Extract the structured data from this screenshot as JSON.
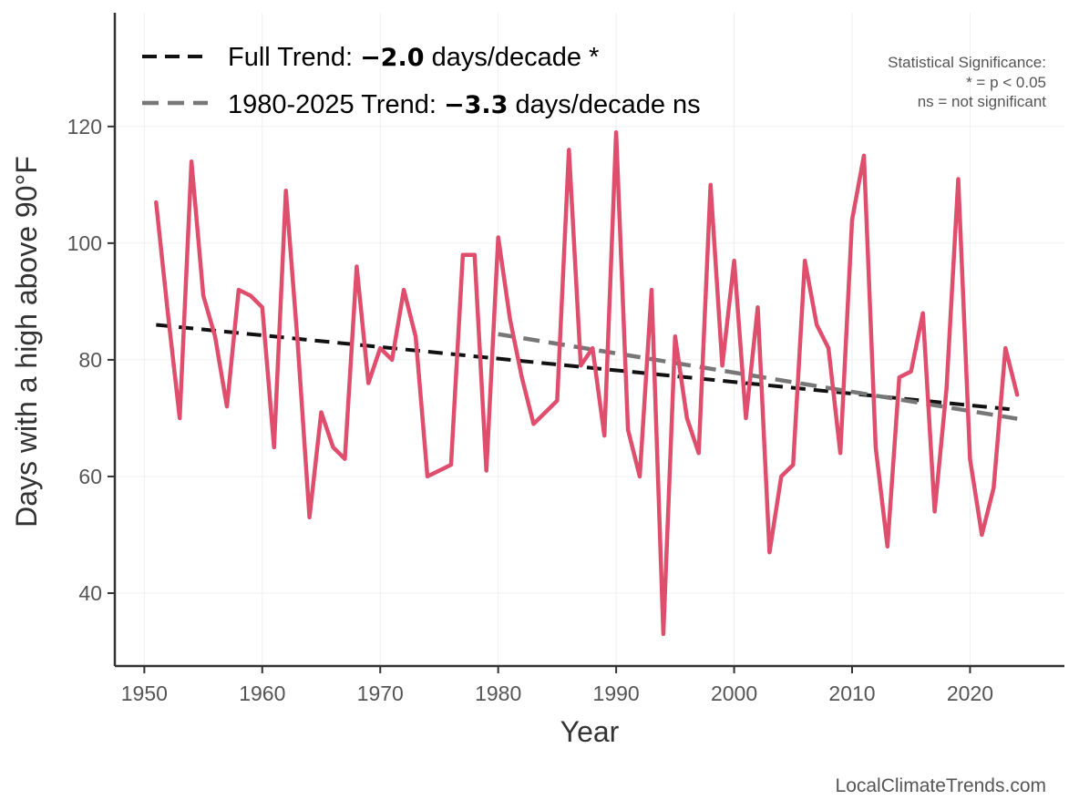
{
  "chart_data": {
    "type": "line",
    "xlabel": "Year",
    "ylabel": "Days with a high above 90°F",
    "xlim": [
      1947.5,
      2028
    ],
    "ylim": [
      27.5,
      139.5
    ],
    "xticks": [
      1950,
      1960,
      1970,
      1980,
      1990,
      2000,
      2010,
      2020
    ],
    "yticks": [
      40,
      60,
      80,
      100,
      120
    ],
    "grid": true,
    "series": [
      {
        "name": "Days above 90°F",
        "color": "#e04e6e",
        "x": [
          1951,
          1952,
          1953,
          1954,
          1955,
          1956,
          1957,
          1958,
          1959,
          1960,
          1961,
          1962,
          1963,
          1964,
          1965,
          1966,
          1967,
          1968,
          1969,
          1970,
          1971,
          1972,
          1973,
          1974,
          1975,
          1976,
          1977,
          1978,
          1979,
          1980,
          1981,
          1982,
          1983,
          1984,
          1985,
          1986,
          1987,
          1988,
          1989,
          1990,
          1991,
          1992,
          1993,
          1994,
          1995,
          1996,
          1997,
          1998,
          1999,
          2000,
          2001,
          2002,
          2003,
          2004,
          2005,
          2006,
          2007,
          2008,
          2009,
          2010,
          2011,
          2012,
          2013,
          2014,
          2015,
          2016,
          2017,
          2018,
          2019,
          2020,
          2021,
          2022,
          2023,
          2024
        ],
        "values": [
          107,
          88,
          70,
          114,
          91,
          84,
          72,
          92,
          91,
          89,
          65,
          109,
          83,
          53,
          71,
          65,
          63,
          96,
          76,
          82,
          80,
          92,
          84,
          60,
          61,
          62,
          98,
          98,
          61,
          101,
          87,
          77,
          69,
          71,
          73,
          116,
          79,
          82,
          67,
          119,
          68,
          60,
          92,
          33,
          84,
          70,
          64,
          110,
          79,
          97,
          70,
          89,
          47,
          60,
          62,
          97,
          86,
          82,
          64,
          104,
          115,
          65,
          48,
          77,
          78,
          88,
          54,
          75,
          111,
          63,
          50,
          58,
          82,
          74
        ]
      }
    ],
    "trends": [
      {
        "name": "Full Trend",
        "color": "#111111",
        "x": [
          1951,
          2024
        ],
        "y": [
          86.0,
          71.4
        ],
        "label_prefix": "Full Trend: ",
        "label_value": "−2.0",
        "label_suffix": " days/decade *"
      },
      {
        "name": "1980-2025 Trend",
        "color": "#777777",
        "x": [
          1980,
          2024
        ],
        "y": [
          84.4,
          69.9
        ],
        "label_prefix": "1980-2025 Trend: ",
        "label_value": "−3.3",
        "label_suffix": " days/decade ns"
      }
    ],
    "annotation": {
      "line1": "Statistical Significance:",
      "line2": "* = p < 0.05",
      "line3": "ns = not significant"
    },
    "source": "LocalClimateTrends.com"
  }
}
